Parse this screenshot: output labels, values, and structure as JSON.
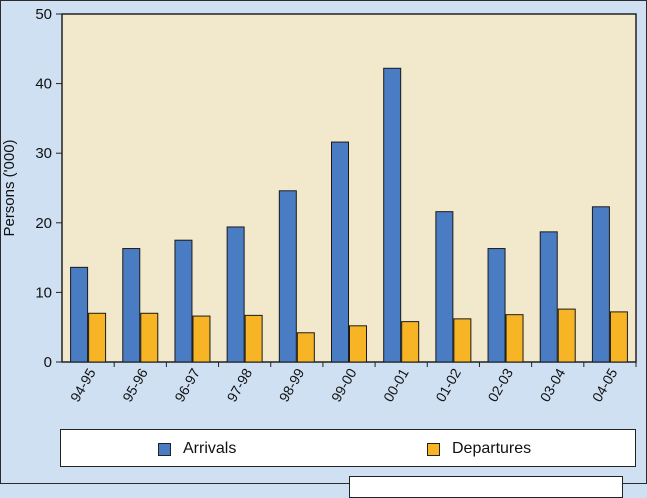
{
  "chart_data": {
    "type": "bar",
    "title": "",
    "xlabel": "",
    "ylabel": "Persons ('000)",
    "ylim": [
      0,
      50
    ],
    "yticks": [
      0,
      10,
      20,
      30,
      40,
      50
    ],
    "categories": [
      "94-95",
      "95-96",
      "96-97",
      "97-98",
      "98-99",
      "99-00",
      "00-01",
      "01-02",
      "02-03",
      "03-04",
      "04-05"
    ],
    "series": [
      {
        "name": "Arrivals",
        "color": "#4a7cc4",
        "values": [
          13.6,
          16.3,
          17.5,
          19.4,
          24.6,
          31.6,
          42.2,
          21.6,
          16.3,
          18.7,
          22.3
        ]
      },
      {
        "name": "Departures",
        "color": "#f7b526",
        "values": [
          7.0,
          7.0,
          6.6,
          6.7,
          4.2,
          5.2,
          5.8,
          6.2,
          6.8,
          7.6,
          7.2
        ]
      }
    ],
    "plot_background": "#f2e9cc",
    "grid": false,
    "legend_position": "bottom"
  }
}
